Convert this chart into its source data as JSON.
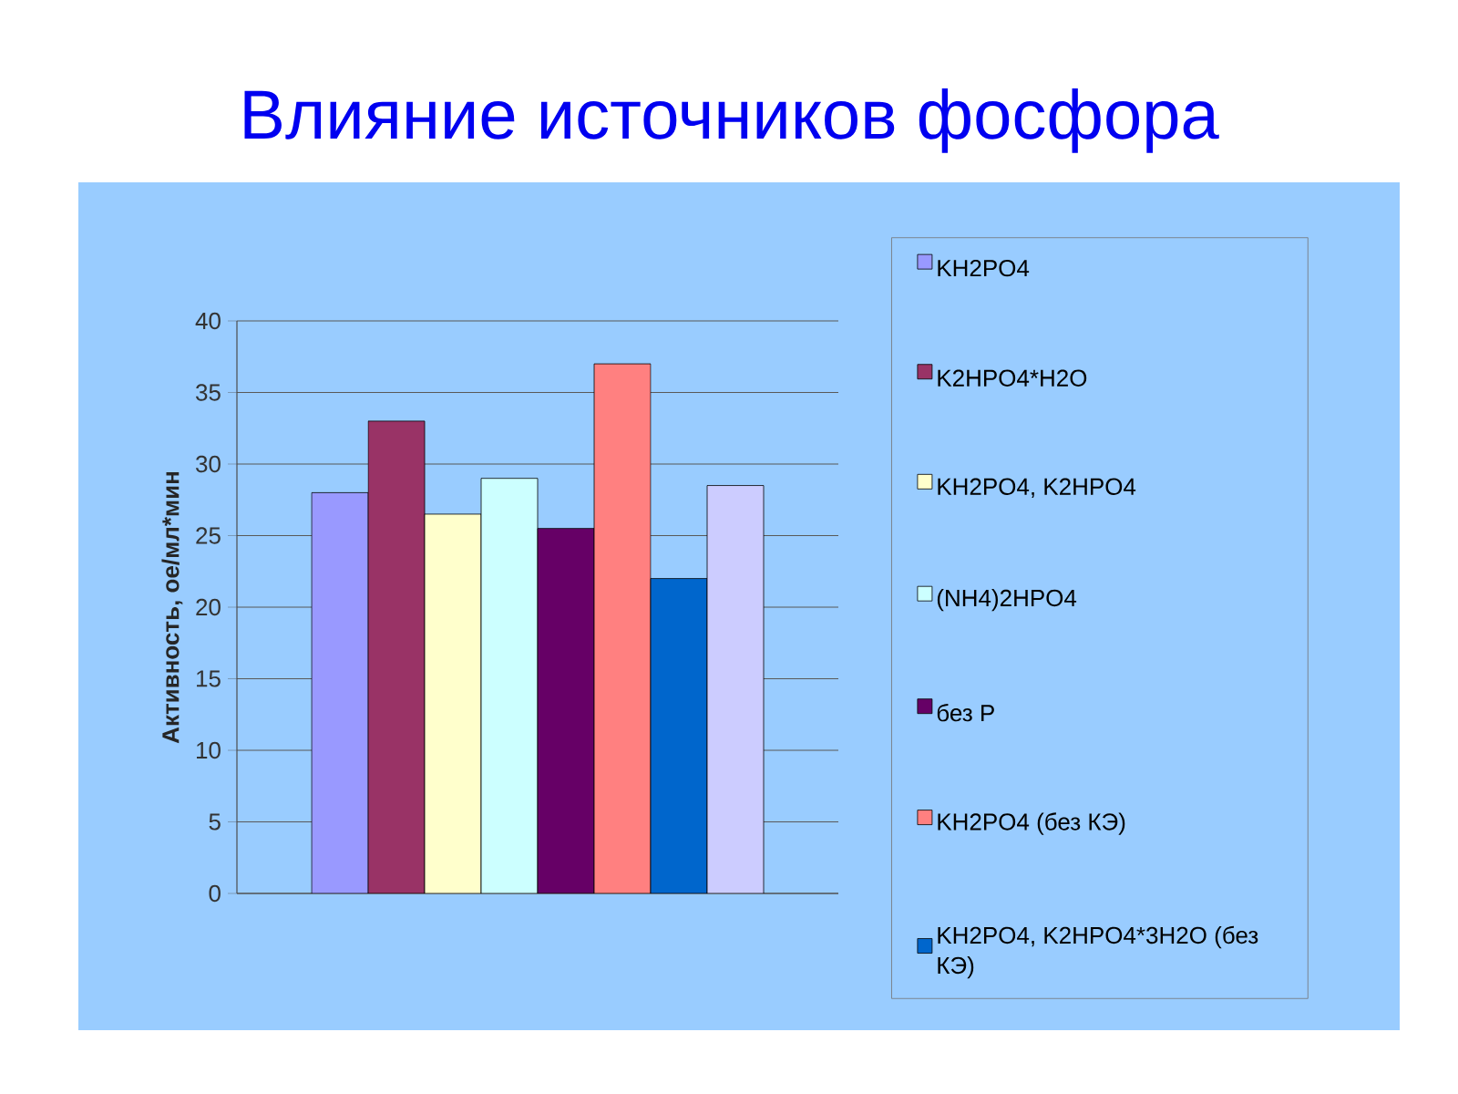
{
  "chart_data": {
    "type": "bar",
    "title": "Влияние источников фосфора",
    "ylabel": "Активность, ое/мл*мин",
    "categories": [
      null
    ],
    "series": [
      {
        "name": "KH2PO4",
        "color": "#9999ff",
        "values": [
          28
        ]
      },
      {
        "name": "K2HPO4*H2O",
        "color": "#993366",
        "values": [
          33
        ]
      },
      {
        "name": "KH2PO4, K2HPO4",
        "color": "#ffffcc",
        "values": [
          26.5
        ]
      },
      {
        "name": "(NH4)2HPO4",
        "color": "#ccffff",
        "values": [
          29
        ]
      },
      {
        "name": "без P",
        "color": "#660066",
        "values": [
          25.5
        ]
      },
      {
        "name": "KH2PO4  (без КЭ)",
        "color": "#ff8080",
        "values": [
          37
        ]
      },
      {
        "name": "KH2PO4, K2HPO4*3H2O (без КЭ)",
        "color": "#0066cc",
        "values": [
          22
        ]
      },
      {
        "color": "#ccccff",
        "values": [
          28.5
        ]
      }
    ],
    "ylim": [
      0,
      40
    ],
    "yticks": [
      0,
      5,
      10,
      15,
      20,
      25,
      30,
      35,
      40
    ],
    "grid": "y",
    "legend": "right"
  }
}
